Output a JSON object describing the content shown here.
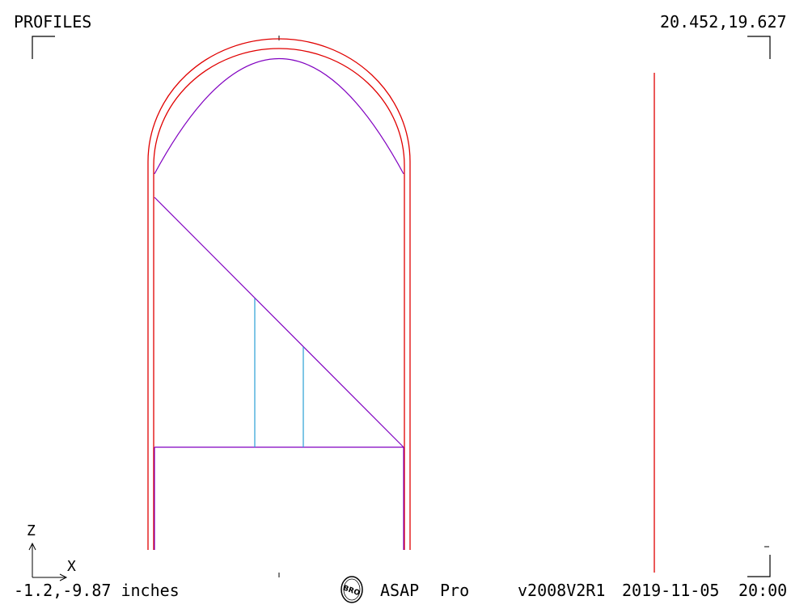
{
  "header": {
    "title": "PROFILES",
    "top_coords": "20.452,19.627"
  },
  "axes": {
    "vertical_label": "Z",
    "horizontal_label": "X"
  },
  "footer": {
    "bottom_coords": "-1.2,-9.87 inches",
    "logo_text": "BRO",
    "product": "ASAP",
    "edition": "Pro",
    "version": "v2008V2R1",
    "date": "2019-11-05",
    "time": "20:00"
  },
  "colors": {
    "outer_profile": "#e00000",
    "inner_profile": "#8000c0",
    "baffle_lines": "#2a9fd6",
    "text": "#000000"
  }
}
